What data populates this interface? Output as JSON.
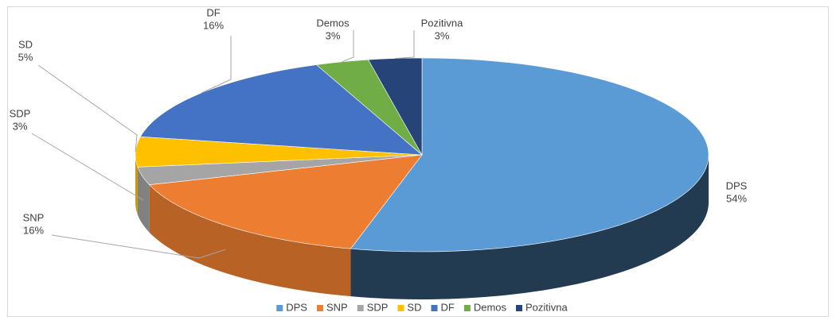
{
  "chart_data": {
    "type": "pie3d",
    "categories": [
      "DPS",
      "SNP",
      "SDP",
      "SD",
      "DF",
      "Demos",
      "Pozitivna"
    ],
    "values": [
      54,
      16,
      3,
      5,
      16,
      3,
      3
    ],
    "value_labels": [
      "54%",
      "16%",
      "3%",
      "5%",
      "16%",
      "3%",
      "3%"
    ],
    "colors": [
      "#5b9bd5",
      "#ed7d31",
      "#a5a5a5",
      "#ffc000",
      "#4472c4",
      "#70ad47",
      "#264478"
    ],
    "legend": "bottom"
  }
}
